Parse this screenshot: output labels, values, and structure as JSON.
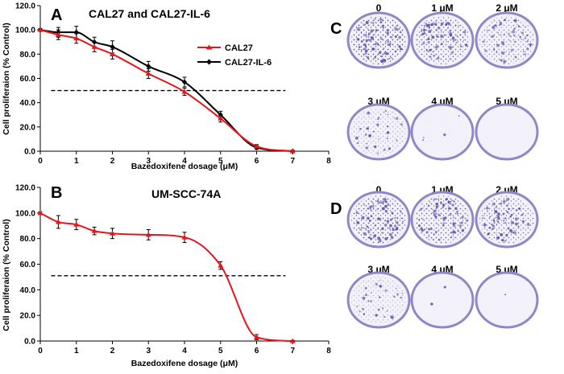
{
  "chart_data": [
    {
      "panel": "A",
      "type": "line",
      "title": "CAL27 and CAL27-IL-6",
      "xlabel": "Bazedoxifene dosage  (μM)",
      "ylabel": "Cell proliferaion (% Control)",
      "xlim": [
        0,
        8
      ],
      "ylim": [
        0,
        120
      ],
      "xticks": [
        0,
        1,
        2,
        3,
        4,
        5,
        6,
        7,
        8
      ],
      "yticks": [
        "0.0",
        "20.0",
        "40.0",
        "60.0",
        "80.0",
        "100.0",
        "120.0"
      ],
      "reference_line_y": 50,
      "legend_position": "top-right",
      "series": [
        {
          "name": "CAL27",
          "color": "#e8141b",
          "marker": "triangle",
          "x": [
            0,
            0.5,
            1,
            1.5,
            2,
            3,
            4,
            5,
            6,
            7
          ],
          "values": [
            100,
            96,
            93,
            86,
            80,
            64,
            49,
            27,
            4,
            0
          ],
          "errors": [
            1,
            4,
            4,
            4,
            4,
            4,
            3,
            3,
            1.5,
            0.5
          ]
        },
        {
          "name": "CAL27-IL-6",
          "color": "#000000",
          "marker": "diamond",
          "x": [
            0,
            0.5,
            1,
            1.5,
            2,
            3,
            4,
            5,
            6,
            7
          ],
          "values": [
            100,
            98,
            98,
            90,
            86,
            70,
            57,
            30,
            3,
            0
          ],
          "errors": [
            1,
            4,
            5,
            4,
            5,
            4,
            4,
            3,
            1.5,
            0.5
          ]
        }
      ]
    },
    {
      "panel": "B",
      "type": "line",
      "title": "UM-SCC-74A",
      "xlabel": "Bazedoxifene dosage  (μM)",
      "ylabel": "Cell proliferaion (% Control)",
      "xlim": [
        0,
        8
      ],
      "ylim": [
        0,
        120
      ],
      "xticks": [
        0,
        1,
        2,
        3,
        4,
        5,
        6,
        7,
        8
      ],
      "yticks": [
        "0.0",
        "20.0",
        "40.0",
        "60.0",
        "80.0",
        "100.0",
        "120.0"
      ],
      "reference_line_y": 51,
      "series": [
        {
          "name": "UM-SCC-74A",
          "color": "#e8141b",
          "marker": "triangle",
          "x": [
            0,
            0.5,
            1,
            1.5,
            2,
            3,
            4,
            5,
            6,
            7
          ],
          "values": [
            100,
            93,
            91,
            86,
            84,
            83,
            81,
            59,
            3,
            0
          ],
          "errors": [
            1,
            5,
            4,
            3,
            4,
            4,
            4,
            3,
            2,
            0.5
          ]
        }
      ]
    }
  ],
  "colony_panels": [
    {
      "panel": "C",
      "labels": [
        "0",
        "1 μM",
        "2 μM",
        "3 μM",
        "4 μM",
        "5 μM"
      ],
      "density": [
        0.95,
        0.8,
        0.6,
        0.35,
        0.04,
        0.0
      ]
    },
    {
      "panel": "D",
      "labels": [
        "0",
        "1 μM",
        "2 μM",
        "3 μM",
        "4 μM",
        "5 μM"
      ],
      "density": [
        0.85,
        0.8,
        0.7,
        0.3,
        0.02,
        0.01
      ]
    }
  ],
  "colors": {
    "stain": "#5a4ea8",
    "dish_rim": "#8f88c8",
    "dish_fill": "#f3f2fa"
  }
}
